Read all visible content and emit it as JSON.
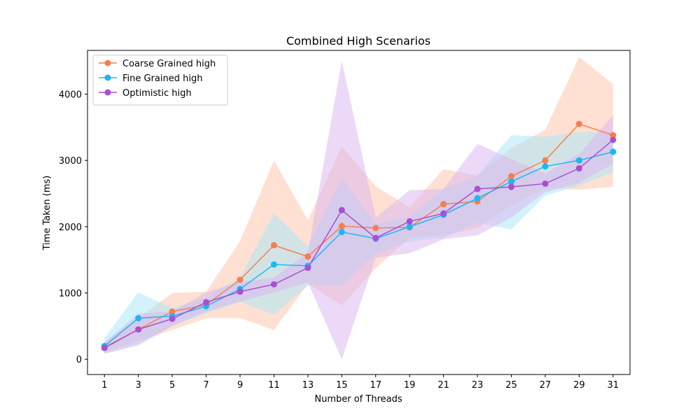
{
  "chart_data": {
    "type": "line",
    "title": "Combined High Scenarios",
    "xlabel": "Number of Threads",
    "ylabel": "Time Taken (ms)",
    "xlim": [
      0,
      32
    ],
    "ylim": [
      -230,
      4660
    ],
    "xticks": [
      1,
      3,
      5,
      7,
      9,
      11,
      13,
      15,
      17,
      19,
      21,
      23,
      25,
      27,
      29,
      31
    ],
    "yticks": [
      0,
      1000,
      2000,
      3000,
      4000
    ],
    "grid": false,
    "legend_position": "upper-left",
    "x": [
      1,
      3,
      5,
      7,
      9,
      11,
      13,
      15,
      17,
      19,
      21,
      23,
      25,
      27,
      29,
      31
    ],
    "series": [
      {
        "name": "Coarse Grained high",
        "color": "#f47f4f",
        "band_color": "#ffc2a8",
        "values": [
          180,
          450,
          720,
          820,
          1200,
          1720,
          1550,
          2010,
          1980,
          1990,
          2340,
          2380,
          2760,
          3000,
          3550,
          3380
        ],
        "band_low": [
          110,
          280,
          440,
          620,
          620,
          440,
          1140,
          810,
          1370,
          1840,
          1870,
          1980,
          2320,
          2580,
          2560,
          2600
        ],
        "band_high": [
          260,
          620,
          1000,
          1020,
          1780,
          3000,
          2100,
          3210,
          2610,
          2290,
          2870,
          2770,
          3190,
          3460,
          4560,
          4150
        ]
      },
      {
        "name": "Fine Grained high",
        "color": "#1cb8f0",
        "band_color": "#a6e5fa",
        "values": [
          200,
          620,
          650,
          800,
          1060,
          1430,
          1410,
          1920,
          1820,
          2000,
          2180,
          2430,
          2680,
          2910,
          3000,
          3130
        ],
        "band_low": [
          90,
          230,
          510,
          690,
          870,
          670,
          1110,
          1110,
          1590,
          1780,
          1830,
          2060,
          1960,
          2470,
          2620,
          2820
        ],
        "band_high": [
          320,
          1010,
          770,
          930,
          1240,
          2200,
          1700,
          2740,
          2040,
          2160,
          2570,
          2770,
          3380,
          3360,
          3430,
          3430
        ]
      },
      {
        "name": "Optimistic high",
        "color": "#a94fd3",
        "band_color": "#d9b3ef",
        "values": [
          170,
          450,
          610,
          860,
          1020,
          1130,
          1380,
          2250,
          1830,
          2080,
          2200,
          2570,
          2600,
          2650,
          2880,
          3310
        ],
        "band_low": [
          80,
          210,
          500,
          720,
          870,
          1010,
          1160,
          0,
          1530,
          1600,
          1810,
          1870,
          2140,
          2520,
          2660,
          2950
        ],
        "band_high": [
          250,
          690,
          720,
          1010,
          1170,
          1230,
          1610,
          4500,
          2140,
          2550,
          2570,
          3250,
          3020,
          2800,
          3100,
          3680
        ]
      }
    ]
  }
}
